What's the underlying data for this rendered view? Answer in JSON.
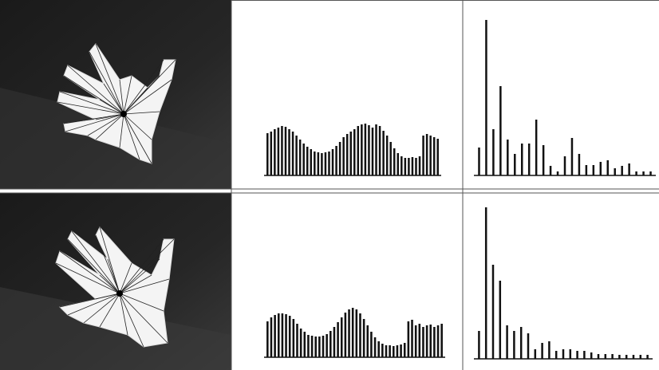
{
  "chart_data": [
    {
      "type": "bar",
      "color": "#111",
      "values": [
        53,
        55,
        58,
        60,
        62,
        61,
        58,
        55,
        50,
        45,
        40,
        36,
        33,
        30,
        29,
        28,
        29,
        30,
        33,
        37,
        42,
        48,
        52,
        55,
        58,
        62,
        64,
        65,
        63,
        60,
        64,
        62,
        56,
        50,
        42,
        34,
        28,
        24,
        22,
        22,
        23,
        22,
        24,
        50,
        52,
        50,
        48,
        46
      ]
    },
    {
      "type": "bar",
      "color": "#111",
      "values": [
        35,
        195,
        58,
        112,
        45,
        27,
        40,
        40,
        70,
        38,
        12,
        5,
        24,
        47,
        27,
        13,
        13,
        17,
        19,
        9,
        12,
        15,
        5,
        5,
        5
      ]
    },
    {
      "type": "bar",
      "color": "#111",
      "values": [
        45,
        50,
        53,
        55,
        55,
        54,
        52,
        48,
        42,
        36,
        32,
        28,
        27,
        26,
        26,
        27,
        29,
        33,
        38,
        44,
        50,
        56,
        60,
        62,
        60,
        55,
        48,
        40,
        32,
        25,
        20,
        17,
        15,
        15,
        14,
        15,
        16,
        18,
        45,
        47,
        40,
        42,
        38,
        40,
        41,
        38,
        40,
        42
      ]
    },
    {
      "type": "bar",
      "color": "#111",
      "values": [
        35,
        190,
        118,
        98,
        42,
        35,
        40,
        32,
        12,
        20,
        22,
        10,
        12,
        12,
        10,
        10,
        8,
        6,
        6,
        6,
        5,
        5,
        5,
        5,
        5
      ]
    }
  ]
}
